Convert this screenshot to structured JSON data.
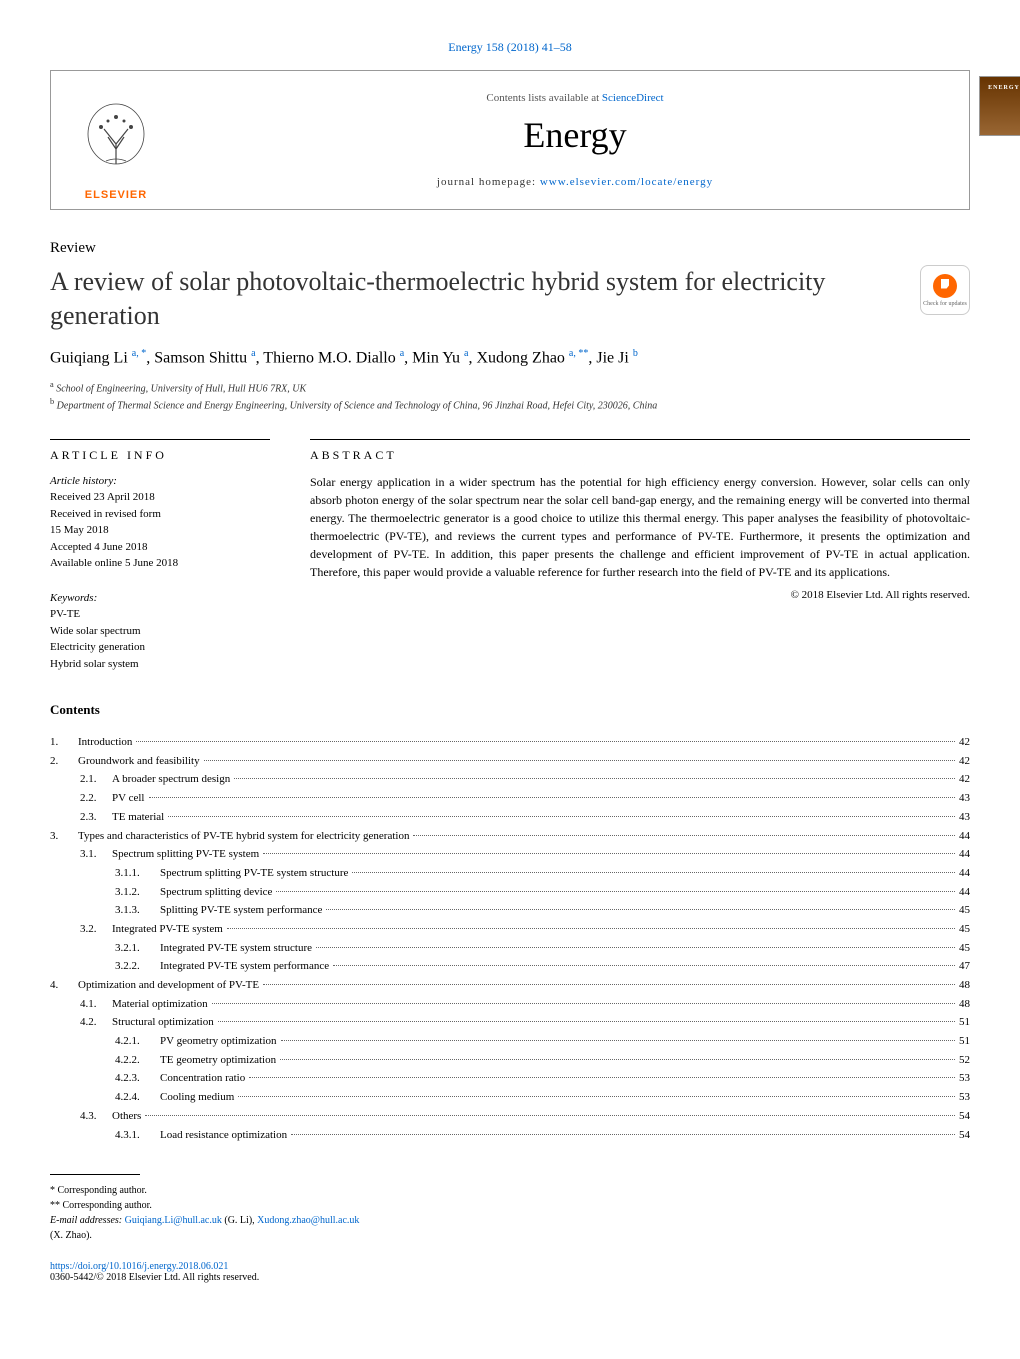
{
  "journalRef": {
    "text": "Energy 158 (2018) 41–58",
    "href": "#"
  },
  "header": {
    "contentsLists": "Contents lists available at",
    "scienceDirect": "ScienceDirect",
    "journalTitle": "Energy",
    "homepageLabel": "journal homepage:",
    "homepageUrl": "www.elsevier.com/locate/energy",
    "elsevierName": "ELSEVIER",
    "coverText": "ENERGY"
  },
  "reviewLabel": "Review",
  "title": "A review of solar photovoltaic-thermoelectric hybrid system for electricity generation",
  "checkUpdates": "Check for updates",
  "authorsHtml": "Guiqiang Li <sup>a, *</sup>, Samson Shittu <sup>a</sup>, Thierno M.O. Diallo <sup>a</sup>, Min Yu <sup>a</sup>, Xudong Zhao <sup>a, **</sup>, Jie Ji <sup>b</sup>",
  "affiliations": [
    {
      "sup": "a",
      "text": "School of Engineering, University of Hull, Hull HU6 7RX, UK"
    },
    {
      "sup": "b",
      "text": "Department of Thermal Science and Energy Engineering, University of Science and Technology of China, 96 Jinzhai Road, Hefei City, 230026, China"
    }
  ],
  "articleInfo": {
    "head": "ARTICLE INFO",
    "historyLabel": "Article history:",
    "history": [
      "Received 23 April 2018",
      "Received in revised form",
      "15 May 2018",
      "Accepted 4 June 2018",
      "Available online 5 June 2018"
    ],
    "keywordsLabel": "Keywords:",
    "keywords": [
      "PV-TE",
      "Wide solar spectrum",
      "Electricity generation",
      "Hybrid solar system"
    ]
  },
  "abstract": {
    "head": "ABSTRACT",
    "text": "Solar energy application in a wider spectrum has the potential for high efficiency energy conversion. However, solar cells can only absorb photon energy of the solar spectrum near the solar cell band-gap energy, and the remaining energy will be converted into thermal energy. The thermoelectric generator is a good choice to utilize this thermal energy. This paper analyses the feasibility of photovoltaic-thermoelectric (PV-TE), and reviews the current types and performance of PV-TE. Furthermore, it presents the optimization and development of PV-TE. In addition, this paper presents the challenge and efficient improvement of PV-TE in actual application. Therefore, this paper would provide a valuable reference for further research into the field of PV-TE and its applications.",
    "copyright": "© 2018 Elsevier Ltd. All rights reserved."
  },
  "contentsHead": "Contents",
  "toc": [
    {
      "level": 1,
      "num": "1.",
      "text": "Introduction",
      "page": "42"
    },
    {
      "level": 1,
      "num": "2.",
      "text": "Groundwork and feasibility",
      "page": "42"
    },
    {
      "level": 2,
      "num": "2.1.",
      "text": "A broader spectrum design",
      "page": "42"
    },
    {
      "level": 2,
      "num": "2.2.",
      "text": "PV cell",
      "page": "43"
    },
    {
      "level": 2,
      "num": "2.3.",
      "text": "TE material",
      "page": "43"
    },
    {
      "level": 1,
      "num": "3.",
      "text": "Types and characteristics of PV-TE hybrid system for electricity generation",
      "page": "44"
    },
    {
      "level": 2,
      "num": "3.1.",
      "text": "Spectrum splitting PV-TE system",
      "page": "44"
    },
    {
      "level": 3,
      "num": "3.1.1.",
      "text": "Spectrum splitting PV-TE system structure",
      "page": "44"
    },
    {
      "level": 3,
      "num": "3.1.2.",
      "text": "Spectrum splitting device",
      "page": "44"
    },
    {
      "level": 3,
      "num": "3.1.3.",
      "text": "Splitting PV-TE system performance",
      "page": "45"
    },
    {
      "level": 2,
      "num": "3.2.",
      "text": "Integrated PV-TE system",
      "page": "45"
    },
    {
      "level": 3,
      "num": "3.2.1.",
      "text": "Integrated PV-TE system structure",
      "page": "45"
    },
    {
      "level": 3,
      "num": "3.2.2.",
      "text": "Integrated PV-TE system performance",
      "page": "47"
    },
    {
      "level": 1,
      "num": "4.",
      "text": "Optimization and development of PV-TE",
      "page": "48"
    },
    {
      "level": 2,
      "num": "4.1.",
      "text": "Material optimization",
      "page": "48"
    },
    {
      "level": 2,
      "num": "4.2.",
      "text": "Structural optimization",
      "page": "51"
    },
    {
      "level": 3,
      "num": "4.2.1.",
      "text": "PV geometry optimization",
      "page": "51"
    },
    {
      "level": 3,
      "num": "4.2.2.",
      "text": "TE geometry optimization",
      "page": "52"
    },
    {
      "level": 3,
      "num": "4.2.3.",
      "text": "Concentration ratio",
      "page": "53"
    },
    {
      "level": 3,
      "num": "4.2.4.",
      "text": "Cooling medium",
      "page": "53"
    },
    {
      "level": 2,
      "num": "4.3.",
      "text": "Others",
      "page": "54"
    },
    {
      "level": 3,
      "num": "4.3.1.",
      "text": "Load resistance optimization",
      "page": "54"
    }
  ],
  "footnotes": {
    "corr1": "* Corresponding author.",
    "corr2": "** Corresponding author.",
    "emailLabel": "E-mail addresses:",
    "email1": "Guiqiang.Li@hull.ac.uk",
    "email1paren": "(G. Li),",
    "email2": "Xudong.zhao@hull.ac.uk",
    "email2paren": "(X. Zhao)."
  },
  "doi": {
    "url": "https://doi.org/10.1016/j.energy.2018.06.021",
    "issn": "0360-5442/© 2018 Elsevier Ltd. All rights reserved."
  }
}
